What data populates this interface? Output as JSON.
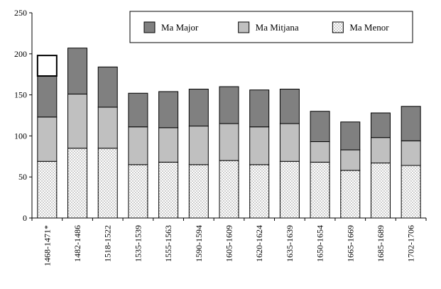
{
  "chart_data": {
    "type": "bar",
    "stacked": true,
    "categories": [
      "1468-1471*",
      "1482-1486",
      "1518-1522",
      "1535-1539",
      "1555-1563",
      "1590-1594",
      "1605-1609",
      "1620-1624",
      "1635-1639",
      "1650-1654",
      "1665-1669",
      "1685-1689",
      "1702-1706"
    ],
    "series": [
      {
        "name": "Ma Menor",
        "values": [
          69,
          85,
          85,
          65,
          68,
          65,
          70,
          65,
          69,
          68,
          58,
          67,
          64
        ],
        "color": "#ffffff",
        "pattern": "dotted"
      },
      {
        "name": "Ma Mitjana",
        "values": [
          54,
          66,
          50,
          46,
          42,
          47,
          45,
          46,
          46,
          25,
          25,
          31,
          30
        ],
        "color": "#c0c0c0",
        "pattern": "solid"
      },
      {
        "name": "Ma Major",
        "values": [
          50,
          56,
          49,
          41,
          44,
          45,
          45,
          45,
          42,
          37,
          34,
          30,
          42
        ],
        "color": "#808080",
        "pattern": "solid"
      }
    ],
    "extra_segment": {
      "category_index": 0,
      "value": 25,
      "color": "#ffffff",
      "note_marker": "*"
    },
    "ylim": [
      0,
      250
    ],
    "yticks": [
      0,
      50,
      100,
      150,
      200,
      250
    ],
    "ytick_labels": [
      "0",
      "50",
      "100",
      "150",
      "200",
      "250"
    ],
    "grid": false,
    "legend_position": "top",
    "legend_order": [
      "Ma Major",
      "Ma Mitjana",
      "Ma Menor"
    ],
    "title": "",
    "xlabel": "",
    "ylabel": ""
  }
}
